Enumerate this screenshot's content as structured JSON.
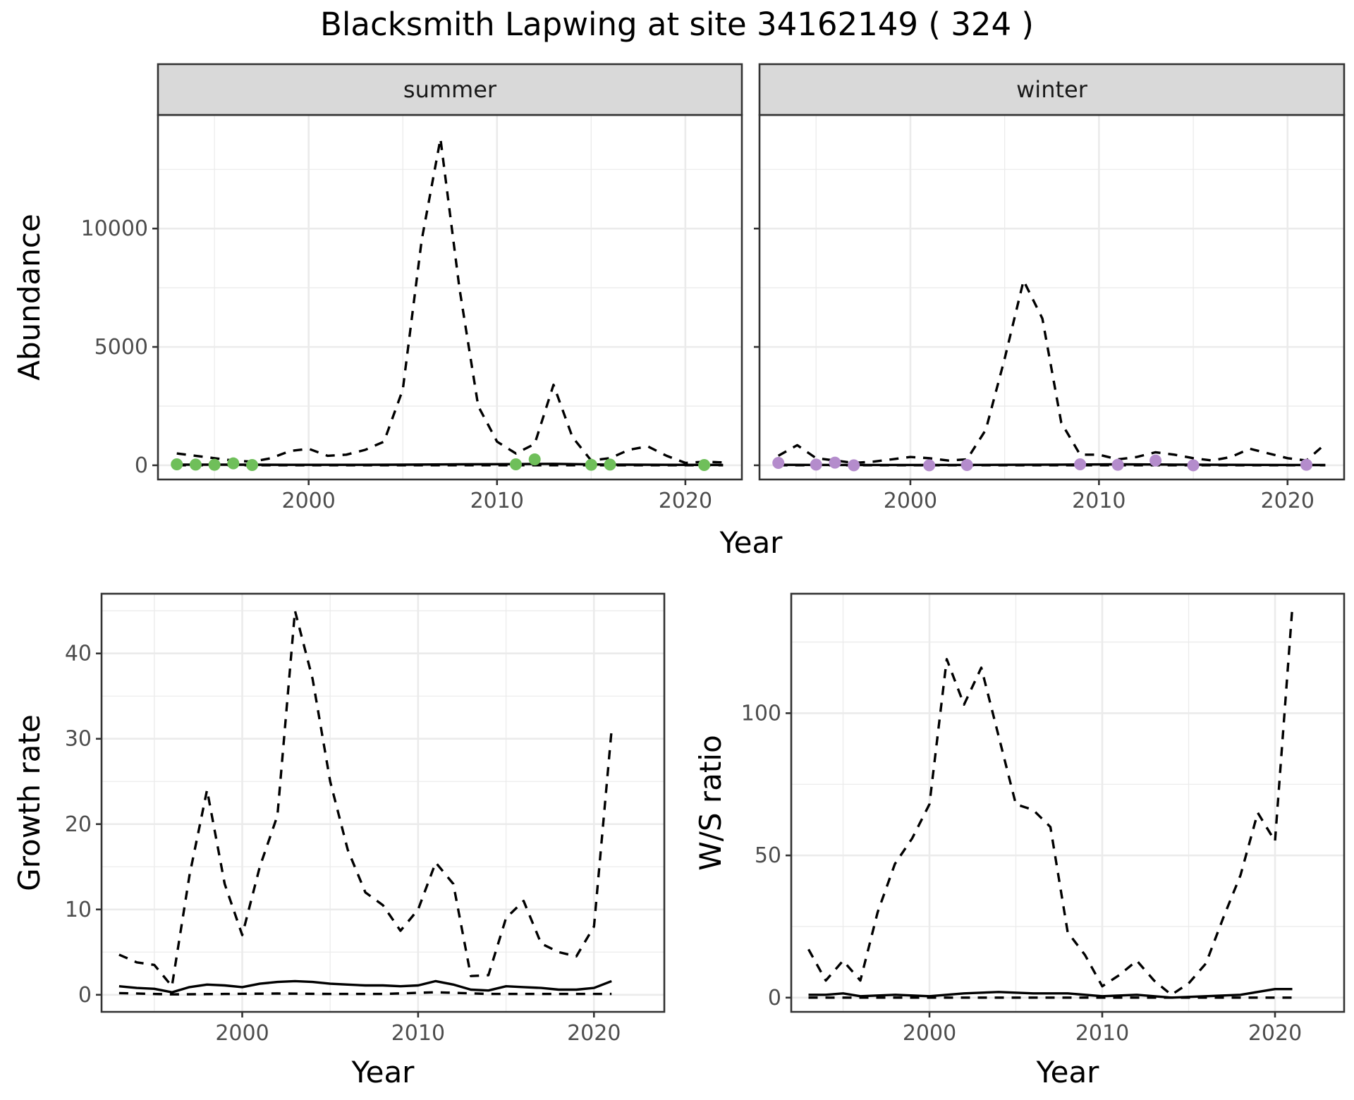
{
  "title": "Blacksmith Lapwing at site 34162149 ( 324 )",
  "colors": {
    "summer_points": "#6fbf5a",
    "winter_points": "#b48ccc",
    "lines": "#000000"
  },
  "chart_data": [
    {
      "name": "abundance",
      "type": "line",
      "ylabel": "Abundance",
      "xlabel": "Year",
      "xlim": [
        1992,
        2023
      ],
      "ylim": [
        -600,
        14800
      ],
      "x_ticks": [
        2000,
        2010,
        2020
      ],
      "y_ticks": [
        0,
        5000,
        10000
      ],
      "grid": true,
      "facets": [
        {
          "label": "summer",
          "points": {
            "x": [
              1993,
              1994,
              1995,
              1996,
              1997,
              2011,
              2012,
              2015,
              2016,
              2021
            ],
            "y": [
              40,
              30,
              20,
              80,
              10,
              40,
              250,
              20,
              30,
              10
            ]
          },
          "median": {
            "x": [
              1993,
              1996,
              1999,
              2002,
              2005,
              2008,
              2011,
              2013,
              2016,
              2019,
              2022
            ],
            "y": [
              30,
              25,
              20,
              20,
              25,
              40,
              50,
              60,
              30,
              20,
              15
            ]
          },
          "lower": {
            "x": [
              1993,
              1996,
              1999,
              2002,
              2005,
              2008,
              2011,
              2014,
              2017,
              2020,
              2022
            ],
            "y": [
              2,
              2,
              2,
              2,
              2,
              3,
              3,
              2,
              2,
              2,
              2
            ]
          },
          "upper": {
            "x": [
              1993,
              1994,
              1995,
              1996,
              1997,
              1998,
              1999,
              2000,
              2001,
              2002,
              2003,
              2004,
              2005,
              2006,
              2007,
              2008,
              2009,
              2010,
              2011,
              2012,
              2013,
              2014,
              2015,
              2016,
              2017,
              2018,
              2019,
              2020,
              2021,
              2022
            ],
            "y": [
              500,
              400,
              300,
              200,
              150,
              300,
              600,
              700,
              400,
              450,
              650,
              1000,
              3200,
              9500,
              13800,
              7500,
              2500,
              1000,
              500,
              900,
              3400,
              1200,
              200,
              300,
              650,
              800,
              400,
              100,
              150,
              120
            ]
          }
        },
        {
          "label": "winter",
          "points": {
            "x": [
              1993,
              1995,
              1996,
              1997,
              2001,
              2003,
              2009,
              2011,
              2013,
              2015,
              2021
            ],
            "y": [
              100,
              30,
              110,
              0,
              0,
              10,
              40,
              20,
              200,
              0,
              20
            ]
          },
          "median": {
            "x": [
              1993,
              1996,
              1999,
              2002,
              2005,
              2008,
              2011,
              2014,
              2017,
              2020,
              2022
            ],
            "y": [
              20,
              15,
              15,
              15,
              20,
              30,
              40,
              30,
              20,
              15,
              10
            ]
          },
          "lower": {
            "x": [
              1993,
              1997,
              2001,
              2005,
              2009,
              2013,
              2017,
              2022
            ],
            "y": [
              1,
              1,
              1,
              1,
              2,
              1,
              1,
              1
            ]
          },
          "upper": {
            "x": [
              1993,
              1994,
              1995,
              1996,
              1997,
              1998,
              1999,
              2000,
              2001,
              2002,
              2003,
              2004,
              2005,
              2006,
              2007,
              2008,
              2009,
              2010,
              2011,
              2012,
              2013,
              2014,
              2015,
              2016,
              2017,
              2018,
              2019,
              2020,
              2021,
              2022
            ],
            "y": [
              400,
              850,
              300,
              200,
              100,
              150,
              250,
              350,
              300,
              200,
              250,
              1500,
              4500,
              7800,
              6200,
              1800,
              450,
              450,
              250,
              350,
              550,
              450,
              300,
              200,
              350,
              700,
              500,
              300,
              200,
              900
            ]
          }
        }
      ]
    },
    {
      "name": "growth-rate",
      "type": "line",
      "ylabel": "Growth rate",
      "xlabel": "Year",
      "xlim": [
        1992,
        2024
      ],
      "ylim": [
        -2,
        47
      ],
      "x_ticks": [
        2000,
        2010,
        2020
      ],
      "y_ticks": [
        0,
        10,
        20,
        30,
        40
      ],
      "grid": true,
      "median": {
        "x": [
          1993,
          1994,
          1995,
          1996,
          1997,
          1998,
          1999,
          2000,
          2001,
          2002,
          2003,
          2004,
          2005,
          2006,
          2007,
          2008,
          2009,
          2010,
          2011,
          2012,
          2013,
          2014,
          2015,
          2016,
          2017,
          2018,
          2019,
          2020,
          2021
        ],
        "y": [
          1.0,
          0.8,
          0.7,
          0.3,
          0.9,
          1.2,
          1.1,
          0.9,
          1.3,
          1.5,
          1.6,
          1.5,
          1.3,
          1.2,
          1.1,
          1.1,
          1.0,
          1.1,
          1.6,
          1.2,
          0.6,
          0.5,
          1.0,
          0.9,
          0.8,
          0.6,
          0.6,
          0.8,
          1.6
        ]
      },
      "lower": {
        "x": [
          1993,
          1996,
          1999,
          2002,
          2005,
          2008,
          2011,
          2014,
          2017,
          2021
        ],
        "y": [
          0.2,
          0.05,
          0.1,
          0.15,
          0.1,
          0.1,
          0.3,
          0.1,
          0.1,
          0.1
        ]
      },
      "upper": {
        "x": [
          1993,
          1994,
          1995,
          1996,
          1997,
          1998,
          1999,
          2000,
          2001,
          2002,
          2003,
          2004,
          2005,
          2006,
          2007,
          2008,
          2009,
          2010,
          2011,
          2012,
          2013,
          2014,
          2015,
          2016,
          2017,
          2018,
          2019,
          2020,
          2021
        ],
        "y": [
          4.7,
          3.8,
          3.5,
          1.0,
          14.0,
          24.0,
          13.0,
          7.0,
          15.0,
          21.0,
          45.0,
          37.0,
          25.0,
          17.0,
          12.0,
          10.5,
          7.5,
          10.0,
          15.5,
          13.0,
          2.2,
          2.3,
          9.0,
          11.0,
          6.0,
          5.0,
          4.5,
          8.0,
          31.0
        ]
      }
    },
    {
      "name": "ws-ratio",
      "type": "line",
      "ylabel": "W/S ratio",
      "xlabel": "Year",
      "xlim": [
        1992,
        2024
      ],
      "ylim": [
        -5,
        142
      ],
      "x_ticks": [
        2000,
        2010,
        2020
      ],
      "y_ticks": [
        0,
        50,
        100
      ],
      "grid": true,
      "median": {
        "x": [
          1993,
          1994,
          1995,
          1996,
          1998,
          2000,
          2002,
          2004,
          2006,
          2008,
          2010,
          2012,
          2014,
          2016,
          2018,
          2020,
          2021
        ],
        "y": [
          1,
          1,
          1.5,
          0.5,
          1,
          0.5,
          1.5,
          2,
          1.5,
          1.5,
          0.5,
          1,
          0,
          0.5,
          1,
          3,
          3
        ]
      },
      "lower": {
        "x": [
          1993,
          1997,
          2001,
          2005,
          2009,
          2013,
          2017,
          2021
        ],
        "y": [
          0,
          0,
          0,
          0,
          0,
          0,
          0,
          0
        ]
      },
      "upper": {
        "x": [
          1993,
          1994,
          1995,
          1996,
          1997,
          1998,
          1999,
          2000,
          2001,
          2002,
          2003,
          2004,
          2005,
          2006,
          2007,
          2008,
          2009,
          2010,
          2011,
          2012,
          2013,
          2014,
          2015,
          2016,
          2017,
          2018,
          2019,
          2020,
          2021
        ],
        "y": [
          17,
          6,
          13,
          6,
          30,
          47,
          56,
          68,
          119,
          103,
          116,
          92,
          68,
          66,
          60,
          23,
          15,
          4,
          8,
          13,
          6,
          1,
          5,
          12,
          28,
          43,
          65,
          55,
          137
        ]
      }
    }
  ]
}
